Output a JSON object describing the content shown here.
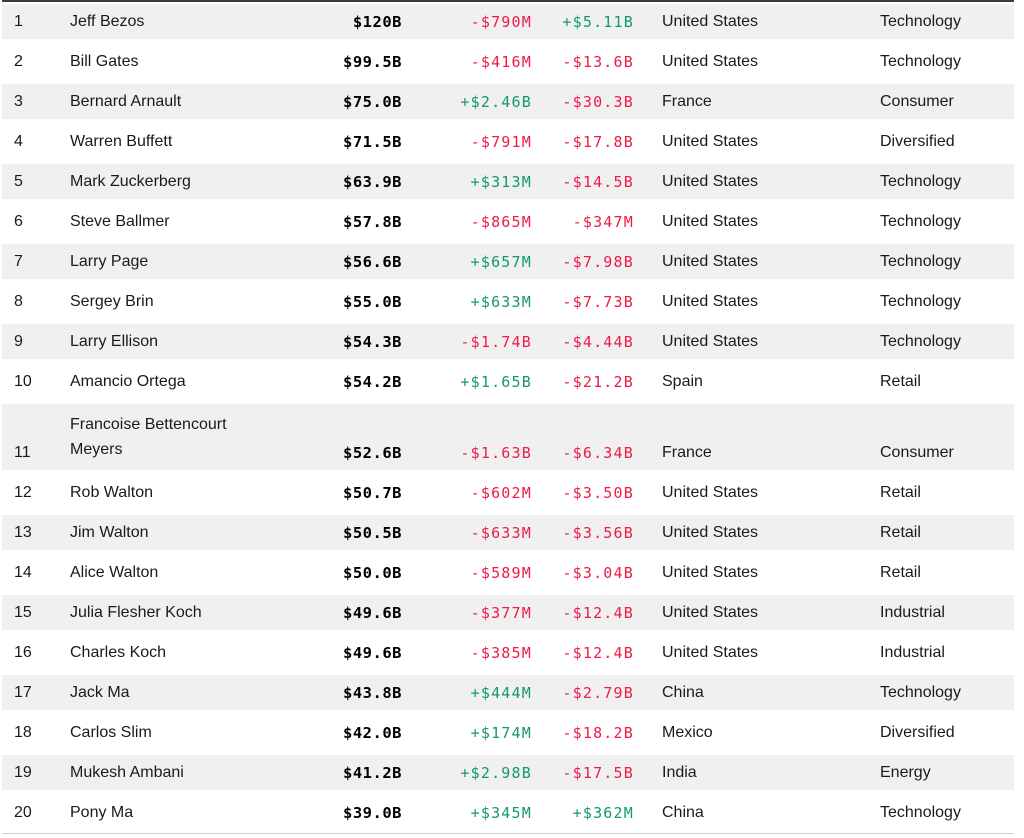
{
  "title": "Billionaires ranking table",
  "colors": {
    "positive": "#12996e",
    "negative": "#ef1a46",
    "stripe_row_bg": "#f0f0f0",
    "text": "#1a1a1a",
    "net_worth_text": "#000000",
    "top_border": "#3b3b3b",
    "bottom_border": "#cfcfcf"
  },
  "chart_data": {
    "type": "table",
    "header_visible": false,
    "layout": "striped-rows, odd ranks shaded, money columns right-aligned monospace",
    "columns": [
      "rank",
      "name",
      "total_net_worth",
      "last_change",
      "ytd_change",
      "country",
      "industry"
    ],
    "rows": [
      {
        "rank": "1",
        "name": "Jeff Bezos",
        "net_worth": "$120B",
        "last_change": "-$790M",
        "ytd_change": "+$5.11B",
        "country": "United States",
        "industry": "Technology"
      },
      {
        "rank": "2",
        "name": "Bill Gates",
        "net_worth": "$99.5B",
        "last_change": "-$416M",
        "ytd_change": "-$13.6B",
        "country": "United States",
        "industry": "Technology"
      },
      {
        "rank": "3",
        "name": "Bernard Arnault",
        "net_worth": "$75.0B",
        "last_change": "+$2.46B",
        "ytd_change": "-$30.3B",
        "country": "France",
        "industry": "Consumer"
      },
      {
        "rank": "4",
        "name": "Warren Buffett",
        "net_worth": "$71.5B",
        "last_change": "-$791M",
        "ytd_change": "-$17.8B",
        "country": "United States",
        "industry": "Diversified"
      },
      {
        "rank": "5",
        "name": "Mark Zuckerberg",
        "net_worth": "$63.9B",
        "last_change": "+$313M",
        "ytd_change": "-$14.5B",
        "country": "United States",
        "industry": "Technology"
      },
      {
        "rank": "6",
        "name": "Steve Ballmer",
        "net_worth": "$57.8B",
        "last_change": "-$865M",
        "ytd_change": "-$347M",
        "country": "United States",
        "industry": "Technology"
      },
      {
        "rank": "7",
        "name": "Larry Page",
        "net_worth": "$56.6B",
        "last_change": "+$657M",
        "ytd_change": "-$7.98B",
        "country": "United States",
        "industry": "Technology"
      },
      {
        "rank": "8",
        "name": "Sergey Brin",
        "net_worth": "$55.0B",
        "last_change": "+$633M",
        "ytd_change": "-$7.73B",
        "country": "United States",
        "industry": "Technology"
      },
      {
        "rank": "9",
        "name": "Larry Ellison",
        "net_worth": "$54.3B",
        "last_change": "-$1.74B",
        "ytd_change": "-$4.44B",
        "country": "United States",
        "industry": "Technology"
      },
      {
        "rank": "10",
        "name": "Amancio Ortega",
        "net_worth": "$54.2B",
        "last_change": "+$1.65B",
        "ytd_change": "-$21.2B",
        "country": "Spain",
        "industry": "Retail"
      },
      {
        "rank": "11",
        "name": "Francoise Bettencourt Meyers",
        "net_worth": "$52.6B",
        "last_change": "-$1.63B",
        "ytd_change": "-$6.34B",
        "country": "France",
        "industry": "Consumer",
        "two_line": true
      },
      {
        "rank": "12",
        "name": "Rob Walton",
        "net_worth": "$50.7B",
        "last_change": "-$602M",
        "ytd_change": "-$3.50B",
        "country": "United States",
        "industry": "Retail"
      },
      {
        "rank": "13",
        "name": "Jim Walton",
        "net_worth": "$50.5B",
        "last_change": "-$633M",
        "ytd_change": "-$3.56B",
        "country": "United States",
        "industry": "Retail"
      },
      {
        "rank": "14",
        "name": "Alice Walton",
        "net_worth": "$50.0B",
        "last_change": "-$589M",
        "ytd_change": "-$3.04B",
        "country": "United States",
        "industry": "Retail"
      },
      {
        "rank": "15",
        "name": "Julia Flesher Koch",
        "net_worth": "$49.6B",
        "last_change": "-$377M",
        "ytd_change": "-$12.4B",
        "country": "United States",
        "industry": "Industrial"
      },
      {
        "rank": "16",
        "name": "Charles Koch",
        "net_worth": "$49.6B",
        "last_change": "-$385M",
        "ytd_change": "-$12.4B",
        "country": "United States",
        "industry": "Industrial"
      },
      {
        "rank": "17",
        "name": "Jack Ma",
        "net_worth": "$43.8B",
        "last_change": "+$444M",
        "ytd_change": "-$2.79B",
        "country": "China",
        "industry": "Technology"
      },
      {
        "rank": "18",
        "name": "Carlos Slim",
        "net_worth": "$42.0B",
        "last_change": "+$174M",
        "ytd_change": "-$18.2B",
        "country": "Mexico",
        "industry": "Diversified"
      },
      {
        "rank": "19",
        "name": "Mukesh Ambani",
        "net_worth": "$41.2B",
        "last_change": "+$2.98B",
        "ytd_change": "-$17.5B",
        "country": "India",
        "industry": "Energy"
      },
      {
        "rank": "20",
        "name": "Pony Ma",
        "net_worth": "$39.0B",
        "last_change": "+$345M",
        "ytd_change": "+$362M",
        "country": "China",
        "industry": "Technology"
      }
    ]
  }
}
